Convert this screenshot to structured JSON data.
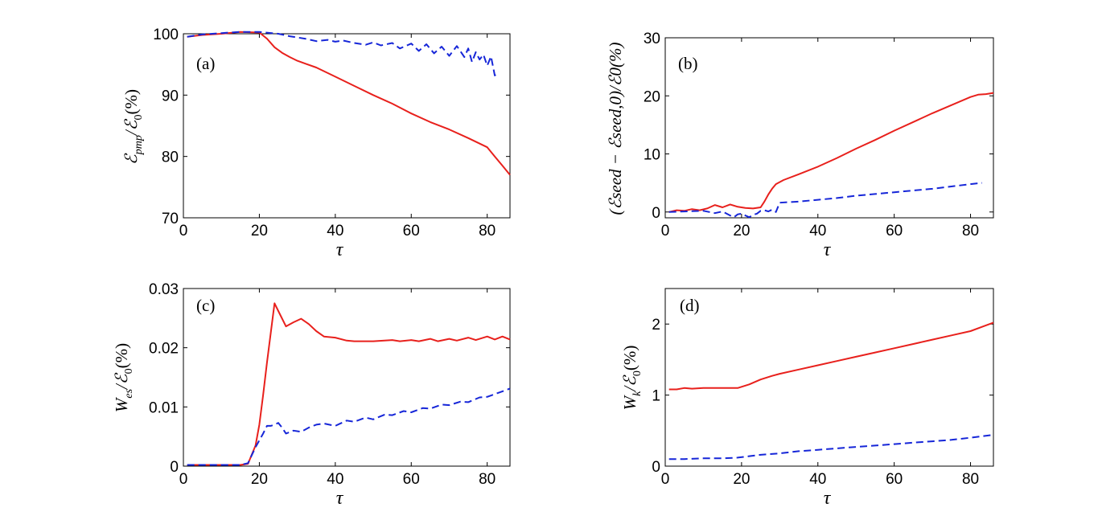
{
  "figure_title": "",
  "colors": {
    "red": "#e8201c",
    "blue": "#1626d8"
  },
  "chart_data": [
    {
      "id": "a",
      "type": "line",
      "panel_label": "(a)",
      "xlabel": "τ",
      "ylabel": {
        "main": "ℰ",
        "sub": "pmp",
        "rest": "/ℰ",
        "sub2": "0",
        "tail": "(%)"
      },
      "xlim": [
        0,
        86
      ],
      "ylim": [
        70,
        100
      ],
      "xticks": [
        0,
        20,
        40,
        60,
        80
      ],
      "yticks": [
        70,
        80,
        90,
        100
      ],
      "xtick_labels": [
        "0",
        "20",
        "40",
        "60",
        "80"
      ],
      "ytick_labels": [
        "70",
        "80",
        "90",
        "100"
      ],
      "series": [
        {
          "name": "red solid",
          "style": "solid",
          "color": "#e8201c",
          "x": [
            1,
            5,
            10,
            15,
            20,
            22,
            24,
            26,
            28,
            30,
            35,
            40,
            45,
            50,
            55,
            60,
            65,
            70,
            75,
            80,
            82,
            84,
            86
          ],
          "y": [
            99.5,
            99.8,
            100.0,
            100.3,
            100.2,
            99.2,
            97.8,
            96.9,
            96.2,
            95.6,
            94.5,
            93.0,
            91.5,
            90.0,
            88.6,
            87.0,
            85.6,
            84.4,
            83.0,
            81.5,
            80.0,
            78.5,
            77.0
          ]
        },
        {
          "name": "blue dashed",
          "style": "dashed",
          "color": "#1626d8",
          "x": [
            1,
            5,
            10,
            15,
            20,
            25,
            28,
            32,
            35,
            38,
            40,
            42,
            45,
            48,
            50,
            52,
            55,
            57,
            60,
            62,
            64,
            66,
            68,
            70,
            72,
            74,
            75,
            76,
            77,
            78,
            79,
            80,
            81,
            82,
            83
          ],
          "y": [
            99.5,
            99.9,
            100.1,
            100.3,
            100.3,
            100.0,
            99.6,
            99.2,
            98.8,
            99.0,
            98.7,
            98.9,
            98.5,
            98.2,
            98.6,
            98.1,
            98.5,
            97.6,
            98.4,
            97.2,
            98.3,
            96.8,
            97.9,
            96.4,
            98.0,
            96.2,
            97.6,
            95.4,
            97.0,
            95.8,
            96.6,
            94.8,
            96.3,
            93.2,
            93.8
          ]
        }
      ]
    },
    {
      "id": "b",
      "type": "line",
      "panel_label": "(b)",
      "xlabel": "τ",
      "ylabel": {
        "text": "(ℰseed − ℰseed,0)/ℰ0(%)"
      },
      "xlim": [
        0,
        86
      ],
      "ylim": [
        -1,
        30
      ],
      "xticks": [
        0,
        20,
        40,
        60,
        80
      ],
      "yticks": [
        0,
        10,
        20,
        30
      ],
      "xtick_labels": [
        "0",
        "20",
        "40",
        "60",
        "80"
      ],
      "ytick_labels": [
        "0",
        "10",
        "20",
        "30"
      ],
      "series": [
        {
          "name": "red solid",
          "style": "solid",
          "color": "#e8201c",
          "x": [
            1,
            3,
            5,
            7,
            9,
            11,
            13,
            15,
            17,
            19,
            21,
            23,
            25,
            26,
            27,
            28,
            29,
            31,
            35,
            40,
            45,
            50,
            55,
            60,
            65,
            70,
            75,
            80,
            82,
            84,
            86
          ],
          "y": [
            0,
            0.3,
            0.2,
            0.5,
            0.3,
            0.6,
            1.2,
            0.8,
            1.3,
            0.9,
            0.7,
            0.6,
            0.8,
            1.8,
            3.0,
            4.0,
            4.8,
            5.5,
            6.5,
            7.8,
            9.3,
            10.9,
            12.4,
            14.0,
            15.5,
            17.0,
            18.4,
            19.8,
            20.2,
            20.3,
            20.5
          ]
        },
        {
          "name": "blue dashed",
          "style": "dashed",
          "color": "#1626d8",
          "x": [
            1,
            5,
            10,
            13,
            15,
            17,
            18,
            19,
            20,
            21,
            22,
            23,
            24,
            25,
            26,
            27,
            28,
            29,
            30,
            35,
            40,
            45,
            50,
            55,
            60,
            65,
            70,
            75,
            80,
            83
          ],
          "y": [
            0,
            0.1,
            0.2,
            -0.2,
            0.1,
            -0.6,
            -0.9,
            -0.4,
            -0.3,
            -0.6,
            -0.9,
            -0.5,
            -0.3,
            0.2,
            0.3,
            0.1,
            0.4,
            0.0,
            1.6,
            1.8,
            2.1,
            2.4,
            2.8,
            3.1,
            3.4,
            3.7,
            4.0,
            4.4,
            4.8,
            5.0
          ]
        }
      ]
    },
    {
      "id": "c",
      "type": "line",
      "panel_label": "(c)",
      "xlabel": "τ",
      "ylabel": {
        "main": "W",
        "sub": "es",
        "rest": "/ℰ",
        "sub2": "0",
        "tail": "(%)"
      },
      "xlim": [
        0,
        86
      ],
      "ylim": [
        0,
        0.03
      ],
      "xticks": [
        0,
        20,
        40,
        60,
        80
      ],
      "yticks": [
        0,
        0.01,
        0.02,
        0.03
      ],
      "xtick_labels": [
        "0",
        "20",
        "40",
        "60",
        "80"
      ],
      "ytick_labels": [
        "0",
        "0.01",
        "0.02",
        "0.03"
      ],
      "series": [
        {
          "name": "red solid",
          "style": "solid",
          "color": "#e8201c",
          "x": [
            1,
            5,
            10,
            15,
            17,
            19,
            20,
            21,
            22,
            23,
            24,
            25,
            27,
            29,
            31,
            33,
            35,
            37,
            40,
            43,
            45,
            50,
            55,
            57,
            60,
            62,
            65,
            67,
            70,
            72,
            75,
            77,
            80,
            82,
            84,
            86
          ],
          "y": [
            0.0002,
            0.0002,
            0.0002,
            0.0002,
            0.0004,
            0.0035,
            0.007,
            0.012,
            0.0175,
            0.0225,
            0.0275,
            0.0262,
            0.0236,
            0.0243,
            0.0249,
            0.024,
            0.0228,
            0.0219,
            0.0217,
            0.0212,
            0.0211,
            0.0211,
            0.0213,
            0.0211,
            0.0213,
            0.0211,
            0.0215,
            0.0211,
            0.0215,
            0.0212,
            0.0217,
            0.0213,
            0.0219,
            0.0214,
            0.0219,
            0.0214
          ]
        },
        {
          "name": "blue dashed",
          "style": "dashed",
          "color": "#1626d8",
          "x": [
            1,
            5,
            10,
            15,
            17,
            19,
            21,
            22,
            23,
            24,
            25,
            26,
            27,
            29,
            31,
            33,
            35,
            37,
            40,
            43,
            45,
            48,
            50,
            53,
            55,
            58,
            60,
            63,
            65,
            68,
            70,
            73,
            75,
            78,
            80,
            83,
            86
          ],
          "y": [
            0.0002,
            0.0002,
            0.0002,
            0.0002,
            0.0005,
            0.0032,
            0.0055,
            0.0068,
            0.0068,
            0.007,
            0.0073,
            0.0065,
            0.0055,
            0.006,
            0.0058,
            0.0065,
            0.007,
            0.0072,
            0.0068,
            0.0077,
            0.0075,
            0.0082,
            0.0079,
            0.0087,
            0.0086,
            0.0093,
            0.0091,
            0.0098,
            0.0097,
            0.0104,
            0.0103,
            0.0109,
            0.0108,
            0.0116,
            0.0117,
            0.0124,
            0.0131
          ]
        }
      ]
    },
    {
      "id": "d",
      "type": "line",
      "panel_label": "(d)",
      "xlabel": "τ",
      "ylabel": {
        "main": "W",
        "sub": "k",
        "rest": "/ℰ",
        "sub2": "0",
        "tail": "(%)"
      },
      "xlim": [
        0,
        86
      ],
      "ylim": [
        0,
        2.5
      ],
      "xticks": [
        0,
        20,
        40,
        60,
        80
      ],
      "yticks": [
        0,
        1,
        2
      ],
      "xtick_labels": [
        "0",
        "20",
        "40",
        "60",
        "80"
      ],
      "ytick_labels": [
        "0",
        "1",
        "2"
      ],
      "series": [
        {
          "name": "red solid",
          "style": "solid",
          "color": "#e8201c",
          "x": [
            1,
            3,
            5,
            7,
            10,
            15,
            19,
            22,
            25,
            28,
            30,
            35,
            40,
            45,
            50,
            55,
            60,
            65,
            70,
            75,
            80,
            83,
            86
          ],
          "y": [
            1.08,
            1.08,
            1.1,
            1.09,
            1.1,
            1.1,
            1.1,
            1.15,
            1.22,
            1.27,
            1.3,
            1.36,
            1.42,
            1.48,
            1.54,
            1.6,
            1.66,
            1.72,
            1.78,
            1.84,
            1.9,
            1.96,
            2.02
          ]
        },
        {
          "name": "blue dashed",
          "style": "dashed",
          "color": "#1626d8",
          "x": [
            1,
            5,
            10,
            15,
            19,
            22,
            25,
            30,
            35,
            40,
            45,
            50,
            55,
            60,
            65,
            70,
            75,
            80,
            86
          ],
          "y": [
            0.1,
            0.1,
            0.11,
            0.11,
            0.12,
            0.14,
            0.16,
            0.18,
            0.21,
            0.23,
            0.25,
            0.27,
            0.29,
            0.31,
            0.33,
            0.35,
            0.37,
            0.4,
            0.44
          ]
        }
      ]
    }
  ]
}
